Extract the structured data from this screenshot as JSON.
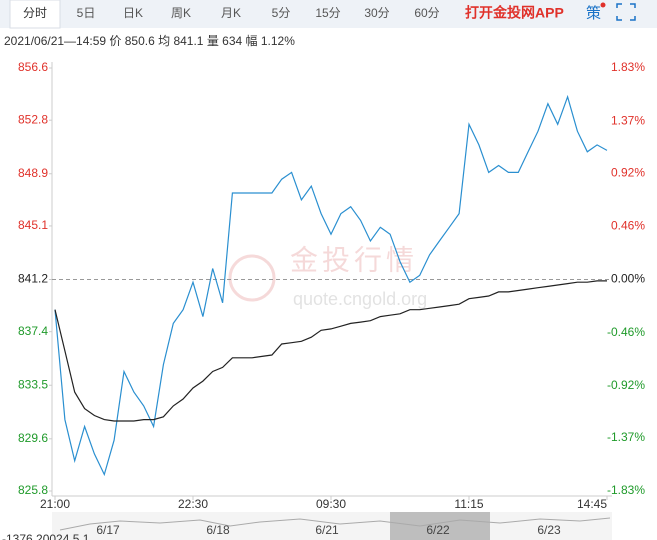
{
  "tabs": [
    "分时",
    "5日",
    "日K",
    "周K",
    "月K",
    "5分",
    "15分",
    "30分",
    "60分"
  ],
  "app_link": "打开金投网APP",
  "strategy": "策",
  "info": "2021/06/21—14:59  价 850.6  均 841.1  量 634  幅 1.12%",
  "watermark": {
    "title": "金投行情",
    "url": "quote.cngold.org"
  },
  "navigator": {
    "labels": [
      "6/17",
      "6/18",
      "6/21",
      "6/22",
      "6/23"
    ],
    "readout": "-1376.20024,5.1"
  },
  "chart_data": {
    "type": "line",
    "categories": [
      "21:00",
      null,
      null,
      null,
      null,
      null,
      null,
      null,
      null,
      null,
      null,
      null,
      null,
      null,
      "22:30",
      null,
      null,
      null,
      null,
      null,
      null,
      null,
      null,
      null,
      null,
      null,
      null,
      null,
      "09:30",
      null,
      null,
      null,
      null,
      null,
      null,
      null,
      null,
      null,
      null,
      null,
      null,
      null,
      "11:15",
      null,
      null,
      null,
      null,
      null,
      null,
      null,
      null,
      null,
      null,
      null,
      null,
      null,
      "14:45"
    ],
    "series": [
      {
        "name": "价",
        "color": "#2a8fd0",
        "values": [
          839,
          831,
          828,
          830.5,
          828.5,
          827,
          829.5,
          834.5,
          833,
          832,
          830.5,
          835,
          838,
          839,
          841,
          838.5,
          842,
          839.5,
          847.5,
          847.5,
          847.5,
          847.5,
          847.5,
          848.5,
          849,
          847,
          848,
          846,
          844.5,
          846,
          846.5,
          845.5,
          844,
          845,
          844.5,
          842.5,
          841,
          841.5,
          843,
          844,
          845,
          846,
          852.5,
          851,
          849,
          849.5,
          849,
          849,
          850.5,
          852,
          854,
          852.5,
          854.5,
          852,
          850.5,
          851,
          850.6
        ]
      },
      {
        "name": "均",
        "color": "#222222",
        "values": [
          839,
          836,
          833,
          831.8,
          831.3,
          831,
          830.9,
          830.9,
          830.9,
          831,
          831,
          831.2,
          832,
          832.5,
          833.3,
          833.8,
          834.5,
          834.8,
          835.5,
          835.5,
          835.5,
          835.6,
          835.7,
          836.5,
          836.6,
          836.7,
          837,
          837.5,
          837.6,
          837.8,
          838,
          838.1,
          838.2,
          838.5,
          838.6,
          838.7,
          839,
          839,
          839.1,
          839.2,
          839.3,
          839.4,
          839.8,
          839.9,
          840,
          840.3,
          840.3,
          840.4,
          840.5,
          840.6,
          840.7,
          840.8,
          840.9,
          841,
          841,
          841.1,
          841.1
        ]
      }
    ],
    "ylim": [
      825.8,
      856.6
    ],
    "yticks": [
      856.6,
      852.8,
      848.9,
      845.1,
      841.2,
      837.4,
      833.5,
      829.6,
      825.8
    ],
    "y2lim": [
      -1.83,
      1.83
    ],
    "y2ticks": [
      {
        "value": 1.83,
        "label": "1.83%"
      },
      {
        "value": 1.37,
        "label": "1.37%"
      },
      {
        "value": 0.92,
        "label": "0.92%"
      },
      {
        "value": 0.46,
        "label": "0.46%"
      },
      {
        "value": 0,
        "label": "0.00%"
      },
      {
        "value": -0.46,
        "label": "-0.46%"
      },
      {
        "value": -0.92,
        "label": "-0.92%"
      },
      {
        "value": -1.37,
        "label": "-1.37%"
      },
      {
        "value": -1.83,
        "label": "-1.83%"
      }
    ],
    "up_color": "#e0312a",
    "down_color": "#1f9a2a",
    "flat_color": "#222222"
  }
}
